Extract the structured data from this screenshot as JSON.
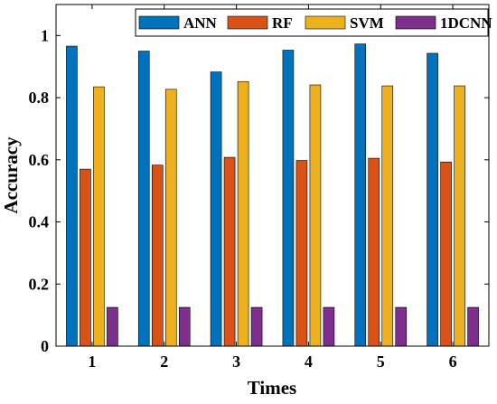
{
  "chart_data": {
    "type": "bar",
    "title": "",
    "xlabel": "Times",
    "ylabel": "Accuracy",
    "categories": [
      "1",
      "2",
      "3",
      "4",
      "5",
      "6"
    ],
    "ylim": [
      0,
      1.1
    ],
    "yticks": [
      0,
      0.2,
      0.4,
      0.6,
      0.8,
      1
    ],
    "ytick_labels": [
      "0",
      "0.2",
      "0.4",
      "0.6",
      "0.8",
      "1"
    ],
    "grid": false,
    "legend_position": "top",
    "legend_orientation": "horizontal",
    "series": [
      {
        "name": "ANN",
        "color": "#0072BD",
        "values": [
          0.966,
          0.95,
          0.883,
          0.953,
          0.973,
          0.943
        ]
      },
      {
        "name": "RF",
        "color": "#D95319",
        "values": [
          0.57,
          0.583,
          0.608,
          0.598,
          0.605,
          0.593
        ]
      },
      {
        "name": "SVM",
        "color": "#EDB120",
        "values": [
          0.835,
          0.827,
          0.852,
          0.841,
          0.838,
          0.838
        ]
      },
      {
        "name": "1DCNN",
        "color": "#7E2F8E",
        "values": [
          0.125,
          0.125,
          0.125,
          0.125,
          0.125,
          0.125
        ]
      }
    ]
  }
}
